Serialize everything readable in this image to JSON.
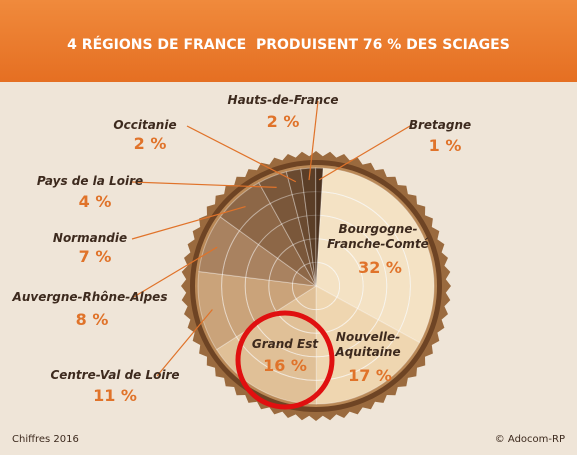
{
  "chart_data": {
    "type": "pie",
    "title": "4 RÉGIONS DE FRANCE  PRODUISENT 76 % DES SCIAGES",
    "categories": [
      "Bourgogne-\nFranche-Comté",
      "Nouvelle-\nAquitaine",
      "Grand Est",
      "Centre-Val de Loire",
      "Auvergne-Rhône-Alpes",
      "Normandie",
      "Pays de la Loire",
      "Occitanie",
      "Hauts-de-France",
      "Bretagne"
    ],
    "values": [
      32,
      17,
      16,
      11,
      8,
      7,
      4,
      2,
      2,
      1
    ],
    "value_labels": [
      "32 %",
      "17 %",
      "16 %",
      "11 %",
      "8 %",
      "7 %",
      "4 %",
      "2 %",
      "2 %",
      "1 %"
    ],
    "colors": [
      "#f4e2c4",
      "#efd6b0",
      "#e0c097",
      "#caa37a",
      "#a98260",
      "#8d6747",
      "#7a573a",
      "#6a4a30",
      "#5b3e27",
      "#4c321f"
    ],
    "notes": [
      "Chiffres 2016",
      "© Adocom-RP"
    ]
  }
}
